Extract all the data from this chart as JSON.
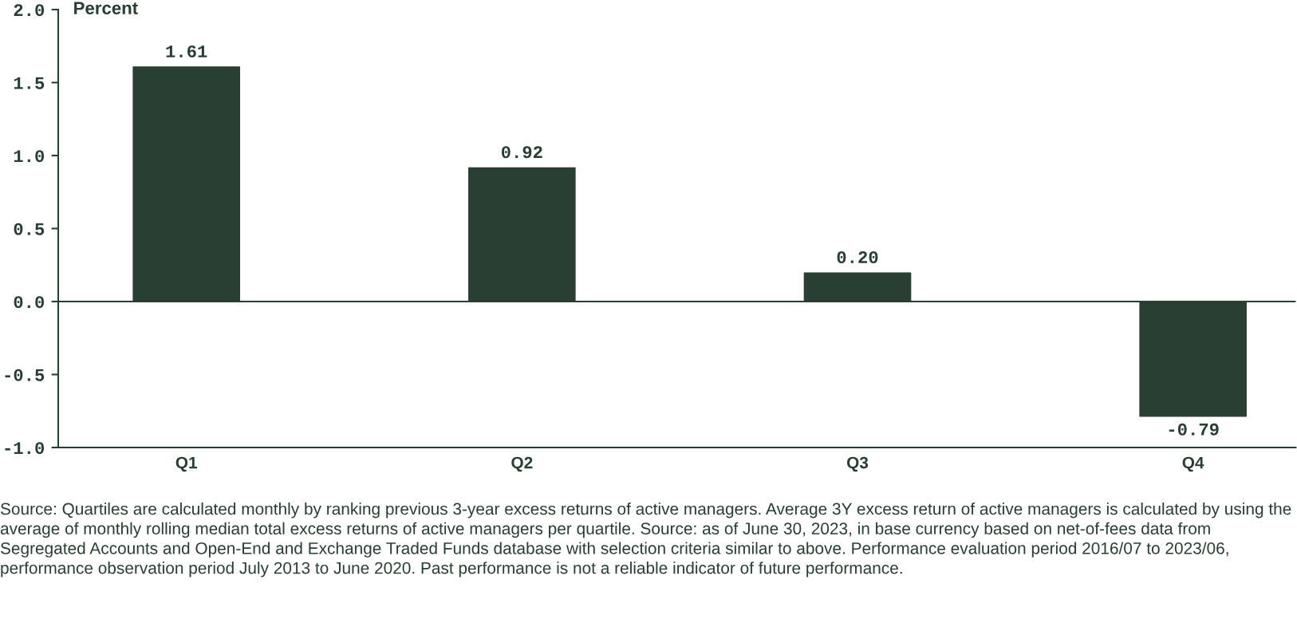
{
  "chart_data": {
    "type": "bar",
    "ylabel": "Percent",
    "categories": [
      "Q1",
      "Q2",
      "Q3",
      "Q4"
    ],
    "values": [
      1.61,
      0.92,
      0.2,
      -0.79
    ],
    "color": "#293f33",
    "value_labels": [
      "1.61",
      "0.92",
      "0.20",
      "-0.79"
    ],
    "ylim": [
      -1.0,
      2.0
    ],
    "yticks": [
      {
        "value": -1.0,
        "label": "-1.0"
      },
      {
        "value": -0.5,
        "label": "-0.5"
      },
      {
        "value": 0,
        "label": "0.0"
      },
      {
        "value": 0.5,
        "label": "0.5"
      },
      {
        "value": 1.0,
        "label": "1.0"
      },
      {
        "value": 1.5,
        "label": "1.5"
      },
      {
        "value": 2.0,
        "label": "2.0"
      }
    ],
    "ref_lines": [
      {
        "axis": "y",
        "value": 0,
        "color": "#293f33"
      }
    ],
    "grid": false,
    "legend": false,
    "annotations": [
      "Source: Quartiles are calculated monthly by ranking previous 3-year excess returns of active managers. Average 3Y excess return of active managers is calculated by using the average of monthly rolling median total excess returns of active managers per quartile. Source: as of June 30, 2023, in base currency based on net-of-fees data from Segregated Accounts and Open-End and Exchange Traded Funds database with selection criteria similar to above. Performance evaluation period 2016/07 to 2023/06, performance observation period July 2013 to June 2020. Past performance is not a reliable indicator of future performance."
    ]
  }
}
